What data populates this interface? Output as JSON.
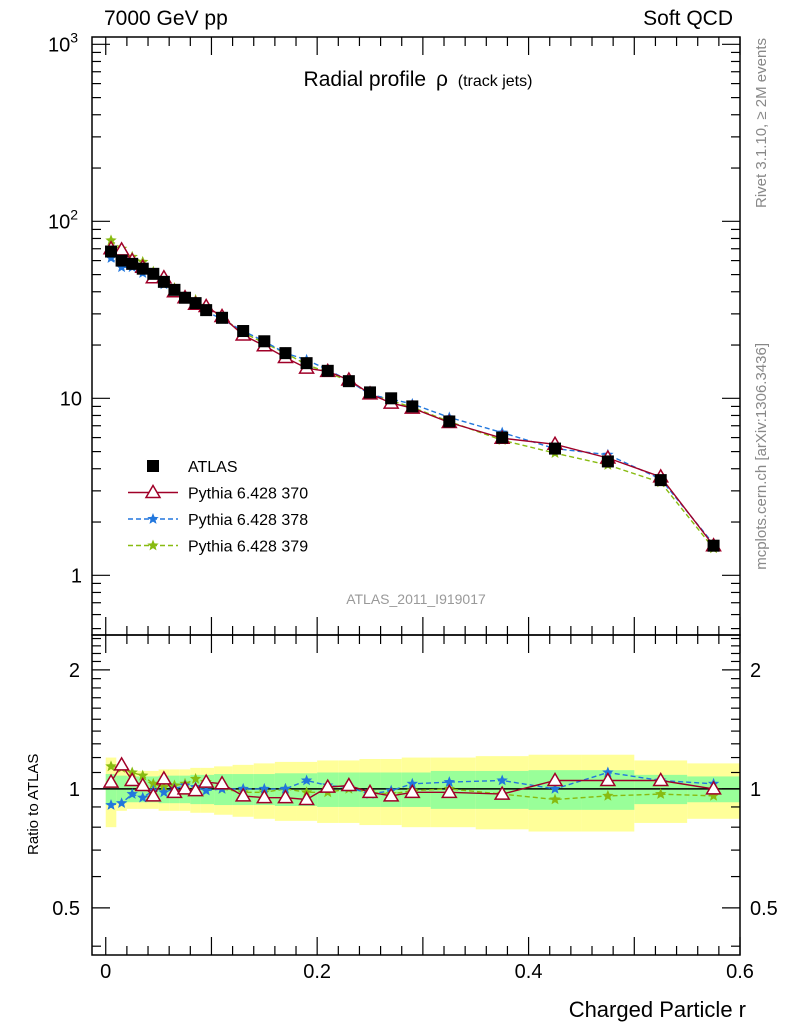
{
  "header": {
    "left_label": "7000 GeV pp",
    "right_label": "Soft QCD"
  },
  "side_labels": {
    "rivet": "Rivet 3.1.10, ≥ 2M events",
    "mcplots": "mcplots.cern.ch [arXiv:1306.3436]"
  },
  "watermark": "ATLAS_2011_I919017",
  "colors": {
    "atlas": "#000000",
    "p370": "#a00028",
    "p378": "#2277dd",
    "p379": "#88bb11",
    "band_yellow": "#ffff99",
    "band_green": "#99ff99"
  },
  "chart_data": [
    {
      "type": "line",
      "title_main": "Radial profile",
      "title_symbol": "ρ",
      "title_sub": "(track jets)",
      "xlim": [
        -0.013,
        0.6
      ],
      "ylim": [
        0.46,
        1100
      ],
      "y_scale": "log",
      "y_tick_labels": [
        "1",
        "10",
        "10",
        "10"
      ],
      "y_tick_superscripts": [
        "",
        "",
        "2",
        "3"
      ],
      "x": [
        0.005,
        0.015,
        0.025,
        0.035,
        0.045,
        0.055,
        0.065,
        0.075,
        0.085,
        0.095,
        0.11,
        0.13,
        0.15,
        0.17,
        0.19,
        0.21,
        0.23,
        0.25,
        0.27,
        0.29,
        0.325,
        0.375,
        0.425,
        0.475,
        0.525,
        0.575
      ],
      "legend_position": "left-middle",
      "series": [
        {
          "name": "ATLAS",
          "marker": "square",
          "values": [
            67.5,
            60,
            57.5,
            54,
            50.5,
            45.5,
            41,
            37,
            34.5,
            31.5,
            28.5,
            24,
            21,
            18,
            15.8,
            14.3,
            12.5,
            10.8,
            10,
            9,
            7.4,
            6,
            5.2,
            4.4,
            3.45,
            1.47
          ]
        },
        {
          "name": "Pythia 6.428 370",
          "marker": "open-triangle",
          "values": [
            70,
            69,
            60,
            55,
            48,
            48,
            40,
            37,
            34,
            33,
            29,
            22.8,
            19.8,
            17,
            14.8,
            14.2,
            12.7,
            10.6,
            9.4,
            8.8,
            7.3,
            5.95,
            5.5,
            4.6,
            3.6,
            1.47
          ]
        },
        {
          "name": "Pythia 6.428 378",
          "marker": "star",
          "values": [
            62,
            55,
            55,
            51,
            50,
            44,
            41,
            38,
            35,
            31,
            28,
            24,
            21,
            18,
            16.5,
            14.5,
            12.6,
            10.5,
            9.9,
            9.3,
            7.8,
            6.4,
            5.2,
            4.8,
            3.5,
            1.5
          ]
        },
        {
          "name": "Pythia 6.428 379",
          "marker": "star",
          "values": [
            78,
            70,
            63,
            59,
            52,
            46,
            42,
            38,
            36,
            33,
            28.5,
            23.5,
            20.5,
            18,
            15.5,
            14,
            12.5,
            10.6,
            9.7,
            8.9,
            7.4,
            5.8,
            4.9,
            4.2,
            3.35,
            1.42
          ]
        }
      ]
    },
    {
      "type": "line",
      "ylabel": "Ratio to ATLAS",
      "xlabel": "Charged Particle r",
      "xlim": [
        -0.013,
        0.6
      ],
      "ylim": [
        0.38,
        2.45
      ],
      "y_scale": "log",
      "y_tick_labels": [
        "0.5",
        "1",
        "2"
      ],
      "x_tick_labels": [
        "0",
        "0.2",
        "0.4",
        "0.6"
      ],
      "x": [
        0.005,
        0.015,
        0.025,
        0.035,
        0.045,
        0.055,
        0.065,
        0.075,
        0.085,
        0.095,
        0.11,
        0.13,
        0.15,
        0.17,
        0.19,
        0.21,
        0.23,
        0.25,
        0.27,
        0.29,
        0.325,
        0.375,
        0.425,
        0.475,
        0.525,
        0.575
      ],
      "band_inner_halfwidth": [
        0.09,
        0.08,
        0.075,
        0.075,
        0.075,
        0.08,
        0.08,
        0.08,
        0.085,
        0.085,
        0.09,
        0.09,
        0.09,
        0.095,
        0.095,
        0.1,
        0.1,
        0.1,
        0.1,
        0.1,
        0.11,
        0.11,
        0.115,
        0.115,
        0.085,
        0.075
      ],
      "band_outer_halfwidth": [
        0.2,
        0.12,
        0.11,
        0.11,
        0.11,
        0.12,
        0.12,
        0.12,
        0.13,
        0.13,
        0.14,
        0.15,
        0.16,
        0.17,
        0.17,
        0.18,
        0.18,
        0.19,
        0.19,
        0.2,
        0.2,
        0.21,
        0.22,
        0.22,
        0.18,
        0.16
      ],
      "series": [
        {
          "name": "Pythia 6.428 370",
          "values": [
            1.04,
            1.15,
            1.05,
            1.02,
            0.96,
            1.06,
            0.98,
            1.0,
            0.99,
            1.04,
            1.03,
            0.96,
            0.95,
            0.95,
            0.94,
            1.01,
            1.02,
            0.98,
            0.96,
            0.98,
            0.98,
            0.97,
            1.05,
            1.05,
            1.05,
            1.0
          ]
        },
        {
          "name": "Pythia 6.428 378",
          "values": [
            0.91,
            0.92,
            0.97,
            0.95,
            0.99,
            0.98,
            1.0,
            1.02,
            1.01,
            0.99,
            1.0,
            1.0,
            1.0,
            1.0,
            1.05,
            1.02,
            1.01,
            0.97,
            0.99,
            1.03,
            1.04,
            1.05,
            1.0,
            1.1,
            1.05,
            1.03
          ]
        },
        {
          "name": "Pythia 6.428 379",
          "values": [
            1.14,
            1.13,
            1.1,
            1.08,
            1.03,
            1.01,
            1.02,
            1.03,
            1.06,
            1.04,
            1.0,
            0.98,
            0.98,
            1.0,
            0.98,
            0.98,
            1.0,
            0.98,
            0.97,
            0.99,
            1.0,
            0.97,
            0.94,
            0.96,
            0.97,
            0.96
          ]
        }
      ]
    }
  ]
}
